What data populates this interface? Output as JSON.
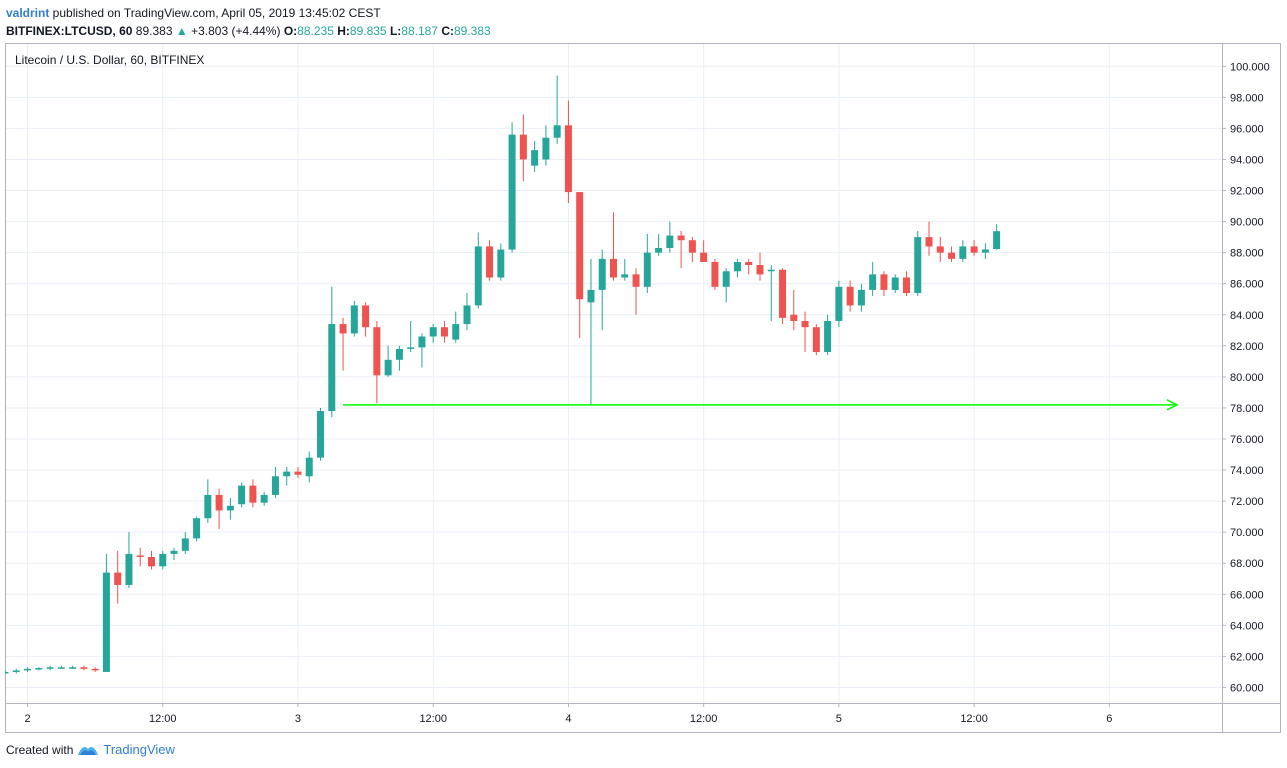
{
  "header": {
    "username": "valdrint",
    "published": " published on TradingView.com, April 05, 2019 13:45:02 CEST",
    "symbol": "BITFINEX:LTCUSD, 60",
    "last": "89.383",
    "change": "+3.803 (+4.44%)",
    "o_label": "O:",
    "o": "88.235",
    "h_label": "H:",
    "h": "89.835",
    "l_label": "L:",
    "l": "88.187",
    "c_label": "C:",
    "c": "89.383"
  },
  "footer": {
    "created_with": "Created with",
    "brand": "TradingView"
  },
  "colors": {
    "up": "#26a69a",
    "down": "#ef5350",
    "grid": "#e9eef6",
    "arrow": "#00ff00"
  },
  "chart_data": {
    "type": "candlestick",
    "title": "Litecoin / U.S. Dollar, 60, BITFINEX",
    "ylim": [
      59,
      101.5
    ],
    "y_ticks": [
      "60.000",
      "62.000",
      "64.000",
      "66.000",
      "68.000",
      "70.000",
      "72.000",
      "74.000",
      "76.000",
      "78.000",
      "80.000",
      "82.000",
      "84.000",
      "86.000",
      "88.000",
      "90.000",
      "92.000",
      "94.000",
      "96.000",
      "98.000",
      "100.000"
    ],
    "x_ticks": [
      "2",
      "12:00",
      "3",
      "12:00",
      "4",
      "12:00",
      "5",
      "12:00",
      "6"
    ],
    "x_tick_hours": [
      0,
      12,
      24,
      36,
      48,
      60,
      72,
      84,
      96
    ],
    "x_range_hours": [
      -2,
      106
    ],
    "grid": true,
    "candles": [
      {
        "t": -2,
        "o": 61.0,
        "h": 61.1,
        "l": 60.9,
        "c": 61.0
      },
      {
        "t": -1,
        "o": 61.0,
        "h": 61.2,
        "l": 60.9,
        "c": 61.1
      },
      {
        "t": 0,
        "o": 61.1,
        "h": 61.3,
        "l": 61.0,
        "c": 61.2
      },
      {
        "t": 1,
        "o": 61.2,
        "h": 61.3,
        "l": 61.1,
        "c": 61.25
      },
      {
        "t": 2,
        "o": 61.25,
        "h": 61.4,
        "l": 61.1,
        "c": 61.3
      },
      {
        "t": 3,
        "o": 61.3,
        "h": 61.4,
        "l": 61.2,
        "c": 61.3
      },
      {
        "t": 4,
        "o": 61.3,
        "h": 61.4,
        "l": 61.2,
        "c": 61.3
      },
      {
        "t": 5,
        "o": 61.3,
        "h": 61.4,
        "l": 61.1,
        "c": 61.2
      },
      {
        "t": 6,
        "o": 61.2,
        "h": 61.3,
        "l": 61.0,
        "c": 61.1
      },
      {
        "t": 7,
        "o": 61.0,
        "h": 68.6,
        "l": 61.0,
        "c": 67.4
      },
      {
        "t": 8,
        "o": 67.4,
        "h": 68.8,
        "l": 65.4,
        "c": 66.6
      },
      {
        "t": 9,
        "o": 66.6,
        "h": 70.0,
        "l": 66.4,
        "c": 68.6
      },
      {
        "t": 10,
        "o": 68.5,
        "h": 69.0,
        "l": 67.8,
        "c": 68.4
      },
      {
        "t": 11,
        "o": 68.4,
        "h": 68.8,
        "l": 67.6,
        "c": 67.8
      },
      {
        "t": 12,
        "o": 67.8,
        "h": 68.8,
        "l": 67.6,
        "c": 68.6
      },
      {
        "t": 13,
        "o": 68.6,
        "h": 69.0,
        "l": 68.2,
        "c": 68.8
      },
      {
        "t": 14,
        "o": 68.8,
        "h": 70.0,
        "l": 68.6,
        "c": 69.6
      },
      {
        "t": 15,
        "o": 69.6,
        "h": 71.0,
        "l": 69.4,
        "c": 70.9
      },
      {
        "t": 16,
        "o": 70.9,
        "h": 73.4,
        "l": 70.6,
        "c": 72.4
      },
      {
        "t": 17,
        "o": 72.4,
        "h": 72.8,
        "l": 70.2,
        "c": 71.4
      },
      {
        "t": 18,
        "o": 71.4,
        "h": 72.2,
        "l": 70.8,
        "c": 71.7
      },
      {
        "t": 19,
        "o": 71.8,
        "h": 73.2,
        "l": 71.6,
        "c": 73.0
      },
      {
        "t": 20,
        "o": 73.0,
        "h": 73.4,
        "l": 71.6,
        "c": 71.9
      },
      {
        "t": 21,
        "o": 71.9,
        "h": 72.6,
        "l": 71.7,
        "c": 72.4
      },
      {
        "t": 22,
        "o": 72.4,
        "h": 74.2,
        "l": 72.2,
        "c": 73.6
      },
      {
        "t": 23,
        "o": 73.6,
        "h": 74.2,
        "l": 73.0,
        "c": 73.9
      },
      {
        "t": 24,
        "o": 73.9,
        "h": 74.2,
        "l": 73.5,
        "c": 73.7
      },
      {
        "t": 25,
        "o": 73.6,
        "h": 75.2,
        "l": 73.2,
        "c": 74.8
      },
      {
        "t": 26,
        "o": 74.8,
        "h": 78.0,
        "l": 74.6,
        "c": 77.8
      },
      {
        "t": 27,
        "o": 77.8,
        "h": 85.8,
        "l": 77.4,
        "c": 83.4
      },
      {
        "t": 28,
        "o": 83.4,
        "h": 83.8,
        "l": 80.4,
        "c": 82.8
      },
      {
        "t": 29,
        "o": 82.8,
        "h": 84.9,
        "l": 82.6,
        "c": 84.6
      },
      {
        "t": 30,
        "o": 84.6,
        "h": 84.8,
        "l": 82.6,
        "c": 83.2
      },
      {
        "t": 31,
        "o": 83.2,
        "h": 83.6,
        "l": 78.3,
        "c": 80.1
      },
      {
        "t": 32,
        "o": 80.1,
        "h": 82.0,
        "l": 80.0,
        "c": 81.1
      },
      {
        "t": 33,
        "o": 81.1,
        "h": 82.0,
        "l": 80.4,
        "c": 81.8
      },
      {
        "t": 34,
        "o": 81.8,
        "h": 83.6,
        "l": 81.6,
        "c": 81.9
      },
      {
        "t": 35,
        "o": 81.9,
        "h": 82.8,
        "l": 80.6,
        "c": 82.6
      },
      {
        "t": 36,
        "o": 82.6,
        "h": 83.4,
        "l": 82.2,
        "c": 83.2
      },
      {
        "t": 37,
        "o": 83.2,
        "h": 83.6,
        "l": 82.2,
        "c": 82.6
      },
      {
        "t": 38,
        "o": 82.4,
        "h": 84.2,
        "l": 82.2,
        "c": 83.4
      },
      {
        "t": 39,
        "o": 83.4,
        "h": 85.4,
        "l": 83.0,
        "c": 84.6
      },
      {
        "t": 40,
        "o": 84.6,
        "h": 89.3,
        "l": 84.4,
        "c": 88.4
      },
      {
        "t": 41,
        "o": 88.4,
        "h": 88.8,
        "l": 86.2,
        "c": 86.4
      },
      {
        "t": 42,
        "o": 86.4,
        "h": 88.6,
        "l": 86.2,
        "c": 88.2
      },
      {
        "t": 43,
        "o": 88.2,
        "h": 96.4,
        "l": 88.0,
        "c": 95.6
      },
      {
        "t": 44,
        "o": 95.6,
        "h": 96.9,
        "l": 92.6,
        "c": 94.0
      },
      {
        "t": 45,
        "o": 93.6,
        "h": 95.2,
        "l": 93.2,
        "c": 94.6
      },
      {
        "t": 46,
        "o": 94.0,
        "h": 96.2,
        "l": 93.6,
        "c": 95.4
      },
      {
        "t": 47,
        "o": 95.4,
        "h": 99.4,
        "l": 95.0,
        "c": 96.2
      },
      {
        "t": 48,
        "o": 96.2,
        "h": 97.8,
        "l": 91.2,
        "c": 91.9
      },
      {
        "t": 49,
        "o": 91.9,
        "h": 91.9,
        "l": 82.5,
        "c": 85.0
      },
      {
        "t": 50,
        "o": 84.8,
        "h": 87.6,
        "l": 78.2,
        "c": 85.6
      },
      {
        "t": 51,
        "o": 85.6,
        "h": 88.2,
        "l": 83.0,
        "c": 87.6
      },
      {
        "t": 52,
        "o": 87.6,
        "h": 90.6,
        "l": 86.2,
        "c": 86.4
      },
      {
        "t": 53,
        "o": 86.4,
        "h": 87.6,
        "l": 86.2,
        "c": 86.6
      },
      {
        "t": 54,
        "o": 86.6,
        "h": 87.0,
        "l": 84.0,
        "c": 85.8
      },
      {
        "t": 55,
        "o": 85.8,
        "h": 89.2,
        "l": 85.4,
        "c": 88.0
      },
      {
        "t": 56,
        "o": 88.0,
        "h": 89.2,
        "l": 87.8,
        "c": 88.3
      },
      {
        "t": 57,
        "o": 88.3,
        "h": 90.0,
        "l": 88.0,
        "c": 89.1
      },
      {
        "t": 58,
        "o": 89.1,
        "h": 89.4,
        "l": 87.0,
        "c": 88.8
      },
      {
        "t": 59,
        "o": 88.8,
        "h": 89.0,
        "l": 87.4,
        "c": 88.0
      },
      {
        "t": 60,
        "o": 88.0,
        "h": 88.8,
        "l": 87.4,
        "c": 87.4
      },
      {
        "t": 61,
        "o": 87.4,
        "h": 87.6,
        "l": 85.6,
        "c": 85.8
      },
      {
        "t": 62,
        "o": 85.8,
        "h": 87.0,
        "l": 84.8,
        "c": 86.8
      },
      {
        "t": 63,
        "o": 86.8,
        "h": 87.6,
        "l": 86.4,
        "c": 87.4
      },
      {
        "t": 64,
        "o": 87.4,
        "h": 87.6,
        "l": 86.6,
        "c": 87.2
      },
      {
        "t": 65,
        "o": 87.2,
        "h": 88.0,
        "l": 86.2,
        "c": 86.6
      },
      {
        "t": 66,
        "o": 86.8,
        "h": 87.2,
        "l": 83.6,
        "c": 86.9
      },
      {
        "t": 67,
        "o": 86.9,
        "h": 87.0,
        "l": 83.4,
        "c": 83.8
      },
      {
        "t": 68,
        "o": 84.0,
        "h": 85.6,
        "l": 83.0,
        "c": 83.6
      },
      {
        "t": 69,
        "o": 83.6,
        "h": 84.2,
        "l": 81.6,
        "c": 83.2
      },
      {
        "t": 70,
        "o": 83.2,
        "h": 83.4,
        "l": 81.4,
        "c": 81.6
      },
      {
        "t": 71,
        "o": 81.6,
        "h": 84.0,
        "l": 81.4,
        "c": 83.6
      },
      {
        "t": 72,
        "o": 83.6,
        "h": 86.2,
        "l": 83.2,
        "c": 85.8
      },
      {
        "t": 73,
        "o": 85.8,
        "h": 86.2,
        "l": 84.2,
        "c": 84.6
      },
      {
        "t": 74,
        "o": 84.6,
        "h": 86.0,
        "l": 84.2,
        "c": 85.6
      },
      {
        "t": 75,
        "o": 85.6,
        "h": 87.4,
        "l": 85.2,
        "c": 86.6
      },
      {
        "t": 76,
        "o": 86.6,
        "h": 86.8,
        "l": 85.2,
        "c": 85.6
      },
      {
        "t": 77,
        "o": 85.6,
        "h": 86.6,
        "l": 85.4,
        "c": 86.4
      },
      {
        "t": 78,
        "o": 86.4,
        "h": 86.8,
        "l": 85.2,
        "c": 85.4
      },
      {
        "t": 79,
        "o": 85.4,
        "h": 89.4,
        "l": 85.2,
        "c": 89.0
      },
      {
        "t": 80,
        "o": 89.0,
        "h": 90.0,
        "l": 87.8,
        "c": 88.4
      },
      {
        "t": 81,
        "o": 88.4,
        "h": 89.0,
        "l": 87.4,
        "c": 88.0
      },
      {
        "t": 82,
        "o": 88.0,
        "h": 88.4,
        "l": 87.4,
        "c": 87.6
      },
      {
        "t": 83,
        "o": 87.6,
        "h": 88.8,
        "l": 87.4,
        "c": 88.4
      },
      {
        "t": 84,
        "o": 88.4,
        "h": 88.8,
        "l": 87.8,
        "c": 88.0
      },
      {
        "t": 85,
        "o": 88.0,
        "h": 88.6,
        "l": 87.6,
        "c": 88.2
      },
      {
        "t": 86,
        "o": 88.235,
        "h": 89.835,
        "l": 88.187,
        "c": 89.383
      }
    ],
    "arrow": {
      "y": 78.2,
      "x_from_hour": 28,
      "x_to_hour": 102
    }
  }
}
